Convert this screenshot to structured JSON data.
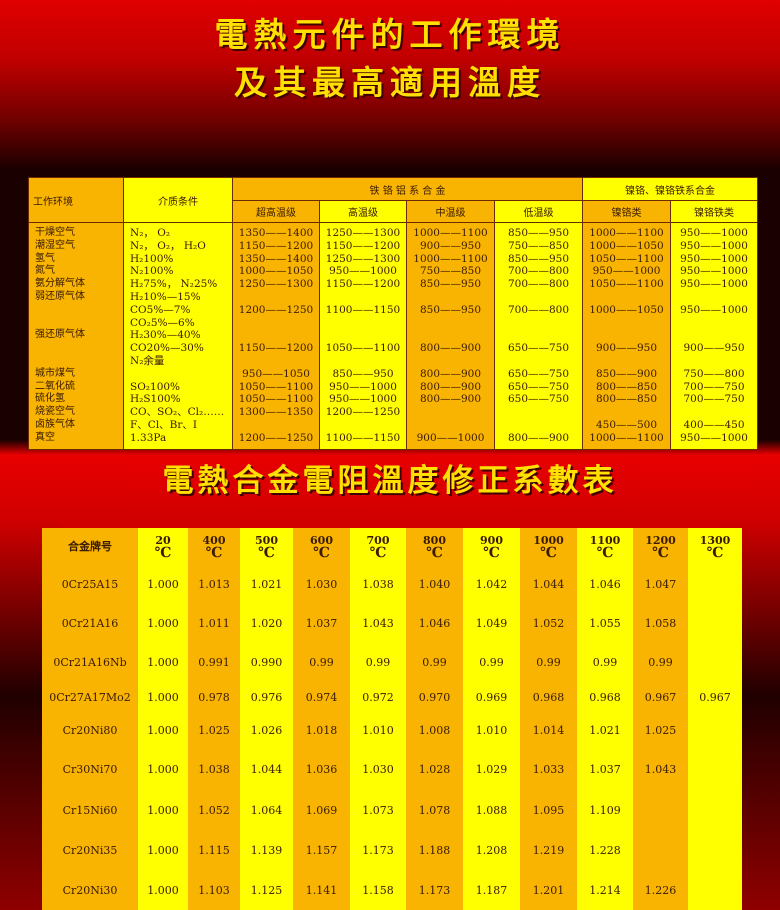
{
  "titles": {
    "line1": "電熱元件的工作環境",
    "line2": "及其最高適用溫度",
    "table2_title": "電熱合金電阻溫度修正系數表"
  },
  "colors": {
    "orange": "#f8b400",
    "yellow": "#ffff00",
    "title": "#ffe000",
    "background": "#d00000"
  },
  "table1": {
    "headers": {
      "environment": "工作环境",
      "medium": "介质条件",
      "fecral_group": "铁 铬 铝 系 合 金",
      "nicr_group": "镍铬、镍铬铁系合金",
      "super_high": "超高温级",
      "high": "高温级",
      "mid": "中温级",
      "low": "低温级",
      "nicr": "镍铬类",
      "nicrfe": "镍铬铁类"
    },
    "environment": [
      "干燥空气",
      "潮湿空气",
      "氢气",
      "氮气",
      "氨分解气体",
      "弱还原气体",
      "",
      "",
      "强还原气体",
      "",
      "",
      "城市煤气",
      "二氧化硫",
      "硫化氢",
      "烧瓷空气",
      "卤族气体",
      "真空"
    ],
    "medium": [
      "N₂， O₂",
      "N₂， O₂， H₂O",
      "H₂100%",
      "N₂100%",
      "H₂75%， N₂25%",
      "H₂10%—15%",
      "CO5%—7%",
      "CO₂5%—6%",
      "H₂30%—40%",
      "CO20%—30%",
      "N₂余量",
      "",
      "SO₂100%",
      "H₂S100%",
      "CO、SO₂、Cl₂……",
      "F、Cl、Br、I",
      "1.33Pa"
    ],
    "super_high": [
      "1350——1400",
      "1150——1200",
      "1350——1400",
      "1000——1050",
      "1250——1300",
      "",
      "1200——1250",
      "",
      "",
      "1150——1200",
      "",
      "950——1050",
      "1050——1100",
      "1050——1100",
      "1300——1350",
      "",
      "1200——1250"
    ],
    "high": [
      "1250——1300",
      "1150——1200",
      "1250——1300",
      "950——1000",
      "1150——1200",
      "",
      "1100——1150",
      "",
      "",
      "1050——1100",
      "",
      "850——950",
      "950——1000",
      "950——1000",
      "1200——1250",
      "",
      "1100——1150"
    ],
    "mid": [
      "1000——1100",
      "900——950",
      "1000——1100",
      "750——850",
      "850——950",
      "",
      "850——950",
      "",
      "",
      "800——900",
      "",
      "800——900",
      "800——900",
      "800——900",
      "",
      "",
      "900——1000"
    ],
    "low": [
      "850——950",
      "750——850",
      "850——950",
      "700——800",
      "700——800",
      "",
      "700——800",
      "",
      "",
      "650——750",
      "",
      "650——750",
      "650——750",
      "650——750",
      "",
      "",
      "800——900"
    ],
    "nicr": [
      "1000——1100",
      "1000——1050",
      "1050——1100",
      "950——1000",
      "1050——1100",
      "",
      "1000——1050",
      "",
      "",
      "900——950",
      "",
      "850——900",
      "800——850",
      "800——850",
      "",
      "450——500",
      "1000——1100"
    ],
    "nicrfe": [
      "950——1000",
      "950——1000",
      "950——1000",
      "950——1000",
      "950——1000",
      "",
      "950——1000",
      "",
      "",
      "900——950",
      "",
      "750——800",
      "700——750",
      "700——750",
      "",
      "400——450",
      "950——1000"
    ]
  },
  "table2": {
    "header_alloy": "合金牌号",
    "unit": "℃",
    "temps": [
      "20",
      "400",
      "500",
      "600",
      "700",
      "800",
      "900",
      "1000",
      "1100",
      "1200",
      "1300"
    ],
    "rows": [
      {
        "alloy": "0Cr25A15",
        "values": [
          "1.000",
          "1.013",
          "1.021",
          "1.030",
          "1.038",
          "1.040",
          "1.042",
          "1.044",
          "1.046",
          "1.047",
          ""
        ]
      },
      {
        "alloy": "0Cr21A16",
        "values": [
          "1.000",
          "1.011",
          "1.020",
          "1.037",
          "1.043",
          "1.046",
          "1.049",
          "1.052",
          "1.055",
          "1.058",
          ""
        ]
      },
      {
        "alloy": "0Cr21A16Nb",
        "values": [
          "1.000",
          "0.991",
          "0.990",
          "0.99",
          "0.99",
          "0.99",
          "0.99",
          "0.99",
          "0.99",
          "0.99",
          ""
        ]
      },
      {
        "alloy": "0Cr27A17Mo2",
        "values": [
          "1.000",
          "0.978",
          "0.976",
          "0.974",
          "0.972",
          "0.970",
          "0.969",
          "0.968",
          "0.968",
          "0.967",
          "0.967"
        ]
      },
      {
        "alloy": "Cr20Ni80",
        "values": [
          "1.000",
          "1.025",
          "1.026",
          "1.018",
          "1.010",
          "1.008",
          "1.010",
          "1.014",
          "1.021",
          "1.025",
          ""
        ]
      },
      {
        "alloy": "Cr30Ni70",
        "values": [
          "1.000",
          "1.038",
          "1.044",
          "1.036",
          "1.030",
          "1.028",
          "1.029",
          "1.033",
          "1.037",
          "1.043",
          ""
        ]
      },
      {
        "alloy": "Cr15Ni60",
        "values": [
          "1.000",
          "1.052",
          "1.064",
          "1.069",
          "1.073",
          "1.078",
          "1.088",
          "1.095",
          "1.109",
          "",
          ""
        ]
      },
      {
        "alloy": "Cr20Ni35",
        "values": [
          "1.000",
          "1.115",
          "1.139",
          "1.157",
          "1.173",
          "1.188",
          "1.208",
          "1.219",
          "1.228",
          "",
          ""
        ]
      },
      {
        "alloy": "Cr20Ni30",
        "values": [
          "1.000",
          "1.103",
          "1.125",
          "1.141",
          "1.158",
          "1.173",
          "1.187",
          "1.201",
          "1.214",
          "1.226",
          ""
        ]
      }
    ]
  }
}
